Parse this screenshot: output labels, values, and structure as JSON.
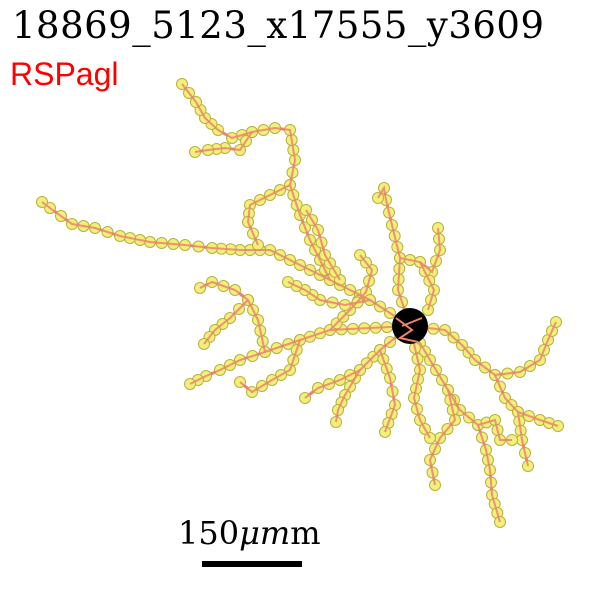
{
  "header": {
    "title": "18869_5123_x17555_y3609",
    "region_label": "RSPagl",
    "region_color": "#ff0000"
  },
  "scale": {
    "label": "150",
    "unit": "μm"
  },
  "colors": {
    "neurite": "#f08070",
    "node_fill": "#f2f07a",
    "node_edge": "#b8b040",
    "soma": "#000000"
  }
}
